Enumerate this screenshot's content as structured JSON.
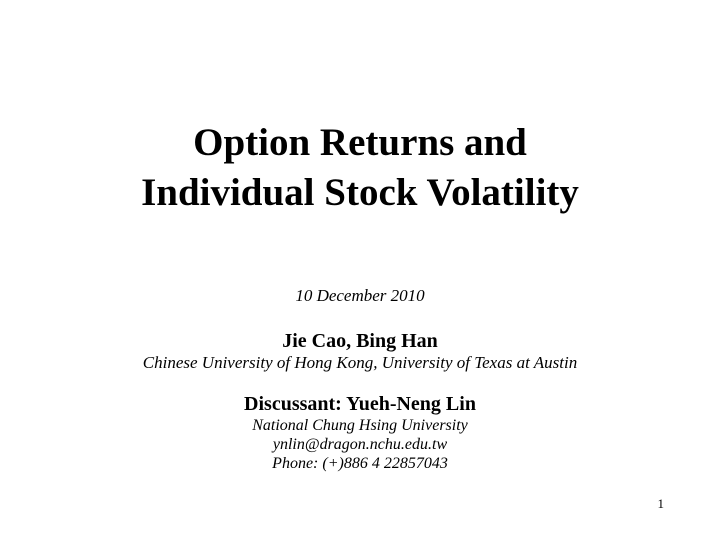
{
  "slide": {
    "title_line1": "Option Returns and",
    "title_line2": "Individual Stock Volatility",
    "date": "10 December 2010",
    "authors": "Jie Cao, Bing Han",
    "affiliation": "Chinese University of Hong Kong, University of Texas at Austin",
    "discussant": "Discussant: Yueh-Neng Lin",
    "discussant_affiliation": "National Chung Hsing University",
    "discussant_email": "ynlin@dragon.nchu.edu.tw",
    "discussant_phone": "Phone: (+)886 4 22857043",
    "page_number": "1"
  }
}
